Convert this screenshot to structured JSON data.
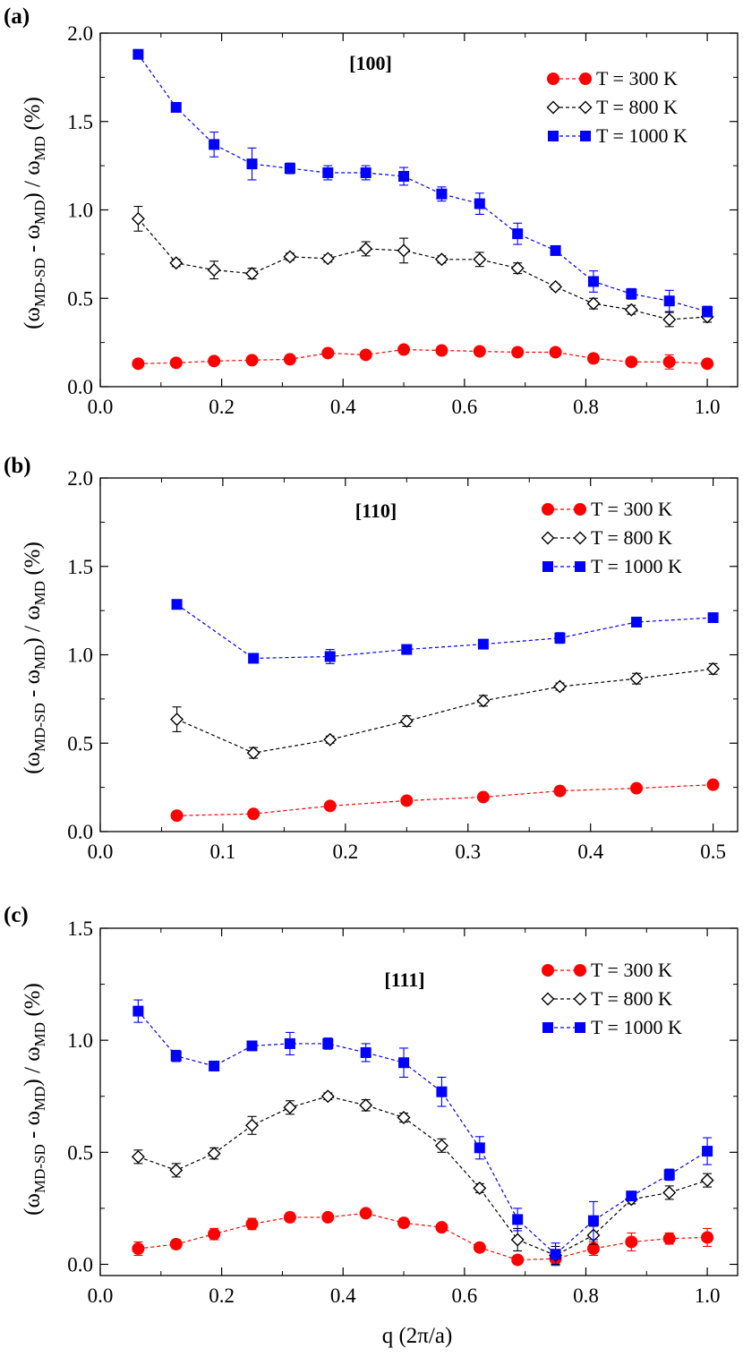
{
  "figure": {
    "xlabel": "q (2π/a)",
    "ylabel_parts": {
      "main_open": "(ω",
      "sub1": "MD-SD",
      "mid": " - ω",
      "sub2": "MD",
      "close": ") / ω",
      "sub3": "MD",
      "unit": " (%)"
    }
  },
  "series_style": [
    {
      "key": "T300",
      "color": "#ff0000",
      "marker": "circle",
      "filled": true
    },
    {
      "key": "T800",
      "color": "#000000",
      "marker": "diamond",
      "filled": false
    },
    {
      "key": "T1000",
      "color": "#0000ff",
      "marker": "square",
      "filled": true
    }
  ],
  "chart_data": [
    {
      "type": "line",
      "panel_label": "(a)",
      "direction": "[100]",
      "xlim": [
        0.0,
        1.05
      ],
      "ylim": [
        0.0,
        2.0
      ],
      "xticks": [
        "0.0",
        "0.2",
        "0.4",
        "0.6",
        "0.8",
        "1.0"
      ],
      "yticks": [
        "0.0",
        "0.5",
        "1.0",
        "1.5",
        "2.0"
      ],
      "legend_position": "top-right",
      "x": [
        0.0625,
        0.125,
        0.1875,
        0.25,
        0.3125,
        0.375,
        0.4375,
        0.5,
        0.5625,
        0.625,
        0.6875,
        0.75,
        0.8125,
        0.875,
        0.9375,
        1.0
      ],
      "series": [
        {
          "name": "T = 300 K",
          "values": [
            0.13,
            0.135,
            0.145,
            0.15,
            0.155,
            0.19,
            0.18,
            0.21,
            0.205,
            0.2,
            0.195,
            0.195,
            0.16,
            0.14,
            0.14,
            0.13
          ],
          "errors": [
            0.02,
            0.02,
            0.02,
            0.02,
            0.015,
            0.02,
            0.02,
            0.02,
            0.015,
            0.02,
            0.02,
            0.02,
            0.025,
            0.02,
            0.04,
            0.02
          ]
        },
        {
          "name": "T = 800 K",
          "values": [
            0.95,
            0.7,
            0.66,
            0.64,
            0.735,
            0.725,
            0.78,
            0.77,
            0.72,
            0.72,
            0.67,
            0.565,
            0.47,
            0.435,
            0.38,
            0.395
          ],
          "errors": [
            0.07,
            0.02,
            0.05,
            0.03,
            0.02,
            0.02,
            0.04,
            0.07,
            0.02,
            0.04,
            0.03,
            0.015,
            0.03,
            0.025,
            0.04,
            0.03
          ]
        },
        {
          "name": "T = 1000 K",
          "values": [
            1.88,
            1.58,
            1.37,
            1.26,
            1.235,
            1.21,
            1.21,
            1.19,
            1.09,
            1.035,
            0.865,
            0.77,
            0.595,
            0.525,
            0.485,
            0.425
          ],
          "errors": [
            0.02,
            0.02,
            0.07,
            0.09,
            0.03,
            0.04,
            0.04,
            0.05,
            0.04,
            0.06,
            0.06,
            0.02,
            0.06,
            0.03,
            0.06,
            0.03
          ]
        }
      ]
    },
    {
      "type": "line",
      "panel_label": "(b)",
      "direction": "[110]",
      "xlim": [
        0.0,
        0.52
      ],
      "ylim": [
        0.0,
        2.0
      ],
      "xticks": [
        "0.0",
        "0.1",
        "0.2",
        "0.3",
        "0.4",
        "0.5"
      ],
      "yticks": [
        "0.0",
        "0.5",
        "1.0",
        "1.5",
        "2.0"
      ],
      "legend_position": "top-right",
      "x": [
        0.0625,
        0.125,
        0.1875,
        0.25,
        0.3125,
        0.375,
        0.4375,
        0.5
      ],
      "series": [
        {
          "name": "T = 300 K",
          "values": [
            0.09,
            0.1,
            0.145,
            0.175,
            0.195,
            0.23,
            0.245,
            0.265
          ],
          "errors": [
            0.02,
            0.02,
            0.02,
            0.02,
            0.02,
            0.02,
            0.02,
            0.02
          ]
        },
        {
          "name": "T = 800 K",
          "values": [
            0.635,
            0.445,
            0.52,
            0.625,
            0.74,
            0.82,
            0.865,
            0.92
          ],
          "errors": [
            0.07,
            0.03,
            0.02,
            0.03,
            0.03,
            0.02,
            0.03,
            0.03
          ]
        },
        {
          "name": "T = 1000 K",
          "values": [
            1.285,
            0.98,
            0.99,
            1.03,
            1.06,
            1.095,
            1.185,
            1.21
          ],
          "errors": [
            0.02,
            0.02,
            0.04,
            0.02,
            0.025,
            0.03,
            0.02,
            0.02
          ]
        }
      ]
    },
    {
      "type": "line",
      "panel_label": "(c)",
      "direction": "[111]",
      "xlim": [
        0.0,
        1.05
      ],
      "ylim": [
        -0.05,
        1.5
      ],
      "xticks": [
        "0.0",
        "0.2",
        "0.4",
        "0.6",
        "0.8",
        "1.0"
      ],
      "yticks": [
        "0.0",
        "0.5",
        "1.0",
        "1.5"
      ],
      "legend_position": "top-right",
      "x": [
        0.0625,
        0.125,
        0.1875,
        0.25,
        0.3125,
        0.375,
        0.4375,
        0.5,
        0.5625,
        0.625,
        0.6875,
        0.75,
        0.8125,
        0.875,
        0.9375,
        1.0
      ],
      "series": [
        {
          "name": "T = 300 K",
          "values": [
            0.07,
            0.09,
            0.135,
            0.18,
            0.21,
            0.21,
            0.228,
            0.185,
            0.165,
            0.075,
            0.02,
            0.025,
            0.07,
            0.1,
            0.115,
            0.12
          ],
          "errors": [
            0.03,
            0.02,
            0.025,
            0.025,
            0.02,
            0.015,
            0.015,
            0.02,
            0.015,
            0.015,
            0.015,
            0.02,
            0.03,
            0.04,
            0.025,
            0.04
          ]
        },
        {
          "name": "T = 800 K",
          "values": [
            0.48,
            0.42,
            0.495,
            0.62,
            0.7,
            0.75,
            0.71,
            0.655,
            0.53,
            0.34,
            0.11,
            0.04,
            0.13,
            0.29,
            0.32,
            0.375
          ],
          "errors": [
            0.03,
            0.03,
            0.025,
            0.04,
            0.03,
            0.015,
            0.025,
            0.02,
            0.03,
            0.02,
            0.05,
            0.04,
            0.04,
            0.02,
            0.03,
            0.03
          ]
        },
        {
          "name": "T = 1000 K",
          "values": [
            1.13,
            0.93,
            0.885,
            0.975,
            0.985,
            0.985,
            0.945,
            0.9,
            0.77,
            0.52,
            0.2,
            0.045,
            0.195,
            0.305,
            0.4,
            0.505
          ],
          "errors": [
            0.05,
            0.025,
            0.02,
            0.015,
            0.05,
            0.025,
            0.04,
            0.065,
            0.065,
            0.05,
            0.05,
            0.05,
            0.085,
            0.02,
            0.025,
            0.06
          ]
        }
      ]
    }
  ]
}
